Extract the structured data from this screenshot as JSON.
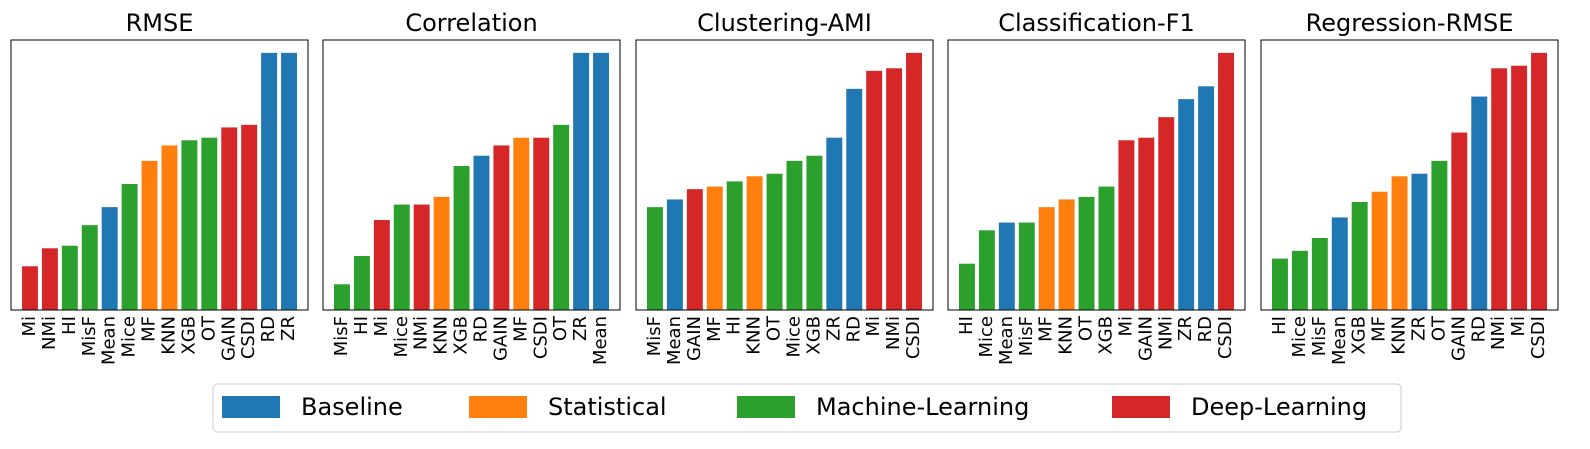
{
  "chart_data": [
    {
      "type": "bar",
      "title": "RMSE",
      "ylim": [
        0,
        105
      ],
      "categories": [
        "Mi",
        "NMi",
        "HI",
        "MisF",
        "Mean",
        "Mice",
        "MF",
        "KNN",
        "XGB",
        "OT",
        "GAIN",
        "CSDI",
        "RD",
        "ZR"
      ],
      "values": [
        17,
        24,
        25,
        33,
        40,
        49,
        58,
        64,
        66,
        67,
        71,
        72,
        100,
        100
      ],
      "groups": [
        "Deep-Learning",
        "Deep-Learning",
        "Machine-Learning",
        "Machine-Learning",
        "Baseline",
        "Machine-Learning",
        "Statistical",
        "Statistical",
        "Machine-Learning",
        "Machine-Learning",
        "Deep-Learning",
        "Deep-Learning",
        "Baseline",
        "Baseline"
      ]
    },
    {
      "type": "bar",
      "title": "Correlation",
      "ylim": [
        0,
        105
      ],
      "categories": [
        "MisF",
        "HI",
        "Mi",
        "Mice",
        "NMi",
        "KNN",
        "XGB",
        "RD",
        "GAIN",
        "MF",
        "CSDI",
        "OT",
        "ZR",
        "Mean"
      ],
      "values": [
        10,
        21,
        35,
        41,
        41,
        44,
        56,
        60,
        64,
        67,
        67,
        72,
        100,
        100
      ],
      "groups": [
        "Machine-Learning",
        "Machine-Learning",
        "Deep-Learning",
        "Machine-Learning",
        "Deep-Learning",
        "Statistical",
        "Machine-Learning",
        "Baseline",
        "Deep-Learning",
        "Statistical",
        "Deep-Learning",
        "Machine-Learning",
        "Baseline",
        "Baseline"
      ]
    },
    {
      "type": "bar",
      "title": "Clustering-AMI",
      "ylim": [
        0,
        105
      ],
      "categories": [
        "MisF",
        "Mean",
        "GAIN",
        "MF",
        "HI",
        "KNN",
        "OT",
        "Mice",
        "XGB",
        "ZR",
        "RD",
        "Mi",
        "NMi",
        "CSDI"
      ],
      "values": [
        40,
        43,
        47,
        48,
        50,
        52,
        53,
        58,
        60,
        67,
        86,
        93,
        94,
        100
      ],
      "groups": [
        "Machine-Learning",
        "Baseline",
        "Deep-Learning",
        "Statistical",
        "Machine-Learning",
        "Statistical",
        "Machine-Learning",
        "Machine-Learning",
        "Machine-Learning",
        "Baseline",
        "Baseline",
        "Deep-Learning",
        "Deep-Learning",
        "Deep-Learning"
      ]
    },
    {
      "type": "bar",
      "title": "Classification-F1",
      "ylim": [
        0,
        105
      ],
      "categories": [
        "HI",
        "Mice",
        "Mean",
        "MisF",
        "MF",
        "KNN",
        "OT",
        "XGB",
        "Mi",
        "GAIN",
        "NMi",
        "ZR",
        "RD",
        "CSDI"
      ],
      "values": [
        18,
        31,
        34,
        34,
        40,
        43,
        44,
        48,
        66,
        67,
        75,
        82,
        87,
        100
      ],
      "groups": [
        "Machine-Learning",
        "Machine-Learning",
        "Baseline",
        "Machine-Learning",
        "Statistical",
        "Statistical",
        "Machine-Learning",
        "Machine-Learning",
        "Deep-Learning",
        "Deep-Learning",
        "Deep-Learning",
        "Baseline",
        "Baseline",
        "Deep-Learning"
      ]
    },
    {
      "type": "bar",
      "title": "Regression-RMSE",
      "ylim": [
        0,
        105
      ],
      "categories": [
        "HI",
        "Mice",
        "MisF",
        "Mean",
        "XGB",
        "MF",
        "KNN",
        "ZR",
        "OT",
        "GAIN",
        "RD",
        "NMi",
        "Mi",
        "CSDI"
      ],
      "values": [
        20,
        23,
        28,
        36,
        42,
        46,
        52,
        53,
        58,
        69,
        83,
        94,
        95,
        100
      ],
      "groups": [
        "Machine-Learning",
        "Machine-Learning",
        "Machine-Learning",
        "Baseline",
        "Machine-Learning",
        "Statistical",
        "Statistical",
        "Baseline",
        "Machine-Learning",
        "Deep-Learning",
        "Baseline",
        "Deep-Learning",
        "Deep-Learning",
        "Deep-Learning"
      ]
    }
  ],
  "legend": [
    {
      "name": "Baseline",
      "color": "#1f77b4"
    },
    {
      "name": "Statistical",
      "color": "#ff7f0e"
    },
    {
      "name": "Machine-Learning",
      "color": "#2ca02c"
    },
    {
      "name": "Deep-Learning",
      "color": "#d62728"
    }
  ]
}
